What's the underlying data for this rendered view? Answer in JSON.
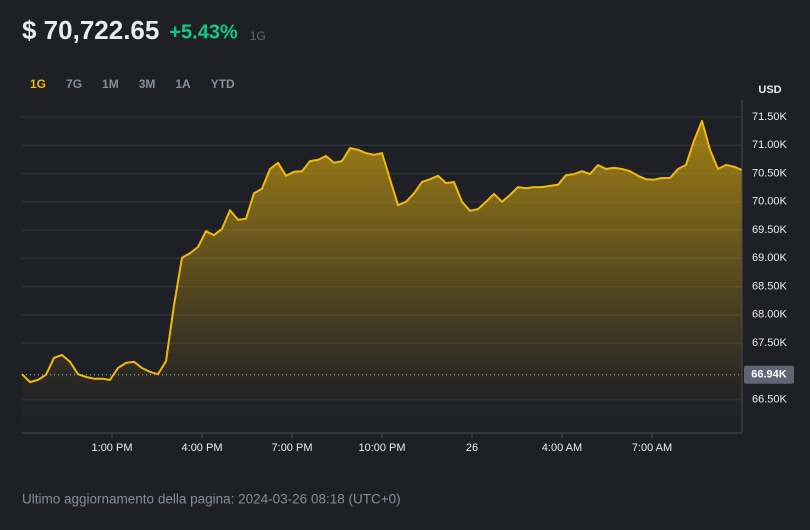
{
  "header": {
    "price": "$ 70,722.65",
    "change": "+5.43%",
    "period": "1G"
  },
  "tabs": {
    "items": [
      "1G",
      "7G",
      "1M",
      "3M",
      "1A",
      "YTD"
    ],
    "active": 0
  },
  "currency": "USD",
  "footer": "Ultimo aggiornamento della pagina: 2024-03-26 08:18 (UTC+0)",
  "chart_data": {
    "type": "area",
    "color": "#f0b90b",
    "x": [
      0,
      16,
      32,
      48,
      64,
      80,
      96,
      112,
      128,
      144,
      160,
      176,
      192,
      208,
      224,
      240,
      256,
      272,
      288,
      304,
      320,
      336,
      352,
      368,
      384,
      400,
      416,
      432,
      448,
      464,
      480,
      496,
      512,
      528,
      544,
      560,
      576,
      592,
      608,
      624,
      640,
      656,
      672,
      688,
      704,
      720,
      736,
      752,
      768,
      784,
      800,
      816,
      832,
      848,
      864,
      880,
      896,
      912,
      928,
      944,
      960,
      976,
      992,
      1008,
      1024,
      1040,
      1056,
      1072,
      1088,
      1104,
      1120,
      1136,
      1152,
      1168,
      1184,
      1200,
      1216,
      1232,
      1248,
      1264,
      1280,
      1296,
      1312,
      1328,
      1344,
      1360,
      1376,
      1392,
      1408,
      1424,
      1440
    ],
    "values": [
      66950,
      66810,
      66850,
      66940,
      67240,
      67290,
      67170,
      66950,
      66900,
      66870,
      66870,
      66850,
      67060,
      67150,
      67170,
      67060,
      66990,
      66950,
      67180,
      68170,
      69010,
      69090,
      69200,
      69480,
      69410,
      69520,
      69850,
      69680,
      69700,
      70150,
      70230,
      70580,
      70690,
      70460,
      70530,
      70540,
      70720,
      70740,
      70810,
      70690,
      70720,
      70950,
      70920,
      70860,
      70830,
      70860,
      70400,
      69940,
      70000,
      70150,
      70350,
      70400,
      70460,
      70330,
      70350,
      70000,
      69840,
      69870,
      70000,
      70140,
      70000,
      70120,
      70260,
      70240,
      70260,
      70260,
      70280,
      70300,
      70470,
      70490,
      70540,
      70490,
      70650,
      70580,
      70600,
      70580,
      70540,
      70460,
      70400,
      70390,
      70420,
      70420,
      70580,
      70650,
      71080,
      71430,
      70920,
      70580,
      70650,
      70620,
      70560
    ],
    "xlim": [
      0,
      1440
    ],
    "xticks": [
      {
        "value": 180,
        "label": "1:00 PM"
      },
      {
        "value": 360,
        "label": "4:00 PM"
      },
      {
        "value": 540,
        "label": "7:00 PM"
      },
      {
        "value": 720,
        "label": "10:00 PM"
      },
      {
        "value": 900,
        "label": "26"
      },
      {
        "value": 1080,
        "label": "4:00 AM"
      },
      {
        "value": 1260,
        "label": "7:00 AM"
      }
    ],
    "ylim": [
      65910,
      71800
    ],
    "yticks": [
      {
        "value": 66500,
        "label": "66.50K"
      },
      {
        "value": 67500,
        "label": "67.50K"
      },
      {
        "value": 68000,
        "label": "68.00K"
      },
      {
        "value": 68500,
        "label": "68.50K"
      },
      {
        "value": 69000,
        "label": "69.00K"
      },
      {
        "value": 69500,
        "label": "69.50K"
      },
      {
        "value": 70000,
        "label": "70.00K"
      },
      {
        "value": 70500,
        "label": "70.50K"
      },
      {
        "value": 71000,
        "label": "71.00K"
      },
      {
        "value": 71500,
        "label": "71.50K"
      }
    ],
    "reference": {
      "value": 66940,
      "label": "66.94K"
    },
    "grid": true
  }
}
